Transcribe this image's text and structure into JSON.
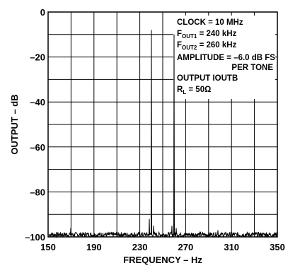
{
  "chart_data": {
    "type": "line",
    "title": "",
    "xlabel": "FREQUENCY – Hz",
    "ylabel": "OUTPUT – dB",
    "xlim": [
      150,
      350
    ],
    "ylim": [
      -100,
      0
    ],
    "x_ticks": [
      "150",
      "190",
      "230",
      "270",
      "310",
      "350"
    ],
    "y_ticks": [
      "0",
      "–20",
      "–40",
      "–60",
      "–80",
      "–100"
    ],
    "grid": true,
    "series": [
      {
        "name": "",
        "color": "#000000",
        "noise_floor": -99,
        "peaks": [
          {
            "x": 240,
            "y": -8
          },
          {
            "x": 260,
            "y": -10
          }
        ],
        "spurs": [
          {
            "x": 170,
            "y": -96
          },
          {
            "x": 238,
            "y": -92
          },
          {
            "x": 242,
            "y": -95
          },
          {
            "x": 258,
            "y": -95
          },
          {
            "x": 262,
            "y": -96
          },
          {
            "x": 298,
            "y": -97
          }
        ]
      }
    ],
    "annotations": {
      "clock": "CLOCK = 10 MHz",
      "fout1_main": "F",
      "fout1_sub": "OUT1",
      "fout1_rest": " = 240 kHz",
      "fout2_main": "F",
      "fout2_sub": "OUT2",
      "fout2_rest": " = 260 kHz",
      "amplitude": "AMPLITUDE = –6.0 dB FS",
      "per_tone": "PER TONE",
      "output": "OUTPUT IOUTB",
      "rl_main": "R",
      "rl_sub": "L",
      "rl_rest": " = 50Ω"
    }
  }
}
